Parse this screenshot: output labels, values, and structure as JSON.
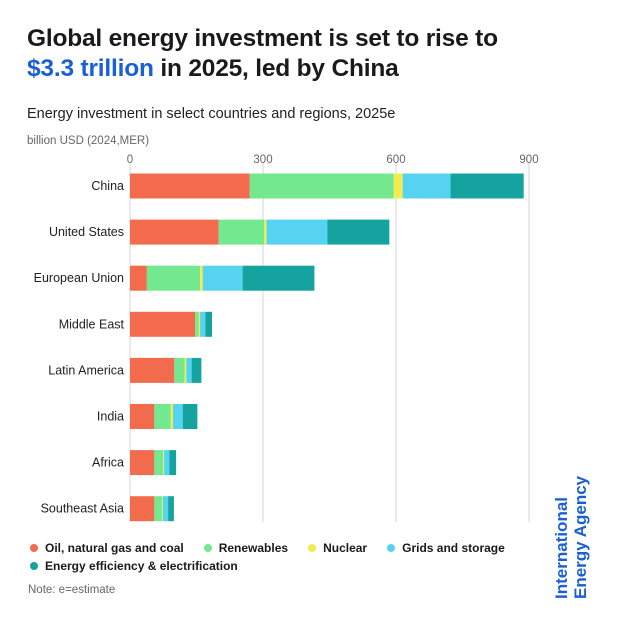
{
  "header": {
    "title_line1": "Global energy investment is set to rise to",
    "title_highlight": "$3.3 trillion",
    "title_rest": " in 2025, led by China",
    "subtitle": "Energy investment in select countries and regions, 2025e",
    "unit": "billion USD (2024,MER)"
  },
  "note": "Note: e=estimate",
  "logo": {
    "line1": "International",
    "line2": "Energy Agency"
  },
  "colors": {
    "oil_gas_coal": "#f26b4d",
    "renewables": "#73e88f",
    "nuclear": "#f3ec4d",
    "grids_storage": "#57d3f2",
    "efficiency": "#14a39e"
  },
  "chart_data": {
    "type": "bar",
    "orientation": "horizontal",
    "stacked": true,
    "categories": [
      "China",
      "United States",
      "European Union",
      "Middle East",
      "Latin America",
      "India",
      "Africa",
      "Southeast Asia"
    ],
    "xlim": [
      0,
      900
    ],
    "xticks": [
      0,
      300,
      600,
      900
    ],
    "grid": true,
    "legend_position": "bottom",
    "series": [
      {
        "name": "Oil, natural gas and coal",
        "color_key": "oil_gas_coal",
        "values": [
          270,
          200,
          38,
          147,
          100,
          55,
          55,
          55
        ]
      },
      {
        "name": "Renewables",
        "color_key": "renewables",
        "values": [
          325,
          103,
          120,
          8,
          23,
          37,
          20,
          17
        ]
      },
      {
        "name": "Nuclear",
        "color_key": "nuclear",
        "values": [
          20,
          5,
          6,
          3,
          4,
          5,
          2,
          2
        ]
      },
      {
        "name": "Grids and storage",
        "color_key": "grids_storage",
        "values": [
          108,
          137,
          90,
          12,
          12,
          22,
          12,
          12
        ]
      },
      {
        "name": "Energy efficiency & electrification",
        "color_key": "efficiency",
        "values": [
          165,
          140,
          162,
          15,
          22,
          33,
          15,
          13
        ]
      }
    ]
  }
}
